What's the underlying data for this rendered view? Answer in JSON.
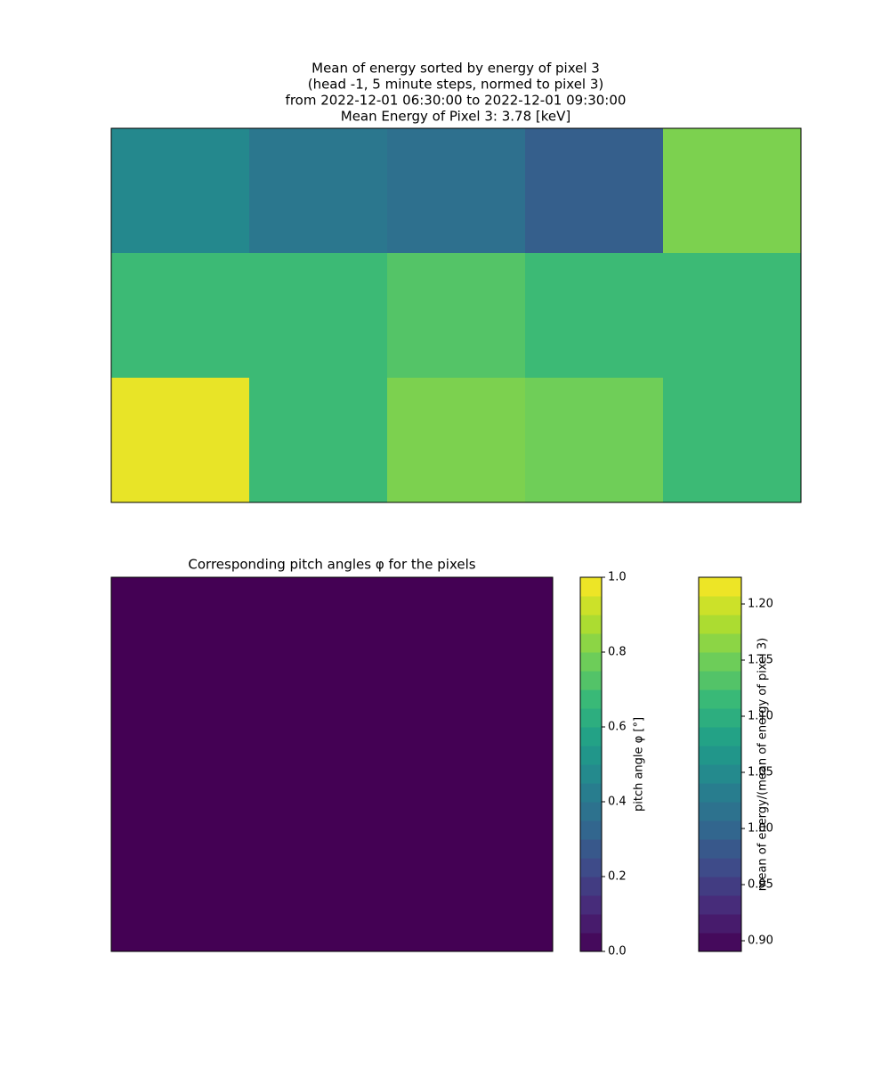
{
  "chart_data": [
    {
      "type": "heatmap",
      "title": [
        "Mean of energy sorted by energy of pixel 3",
        "(head -1, 5 minute steps, normed to pixel 3)",
        "from 2022-12-01 06:30:00 to 2022-12-01 09:30:00",
        "Mean Energy of Pixel 3: 3.78 [keV]"
      ],
      "colormap": "viridis",
      "values": [
        [
          1.047,
          1.023,
          1.013,
          0.99,
          1.157
        ],
        [
          1.117,
          1.117,
          1.133,
          1.117,
          1.117
        ],
        [
          1.213,
          1.117,
          1.157,
          1.15,
          1.117
        ]
      ],
      "colorbar": {
        "label": "mean of energy/(mean of energy of pixel 3)",
        "lim": [
          0.8905,
          1.2238
        ],
        "ticks": [
          {
            "value": 0.9,
            "label": "0.90"
          },
          {
            "value": 0.95,
            "label": "0.95"
          },
          {
            "value": 1.0,
            "label": "1.00"
          },
          {
            "value": 1.05,
            "label": "1.05"
          },
          {
            "value": 1.1,
            "label": "1.10"
          },
          {
            "value": 1.15,
            "label": "1.15"
          },
          {
            "value": 1.2,
            "label": "1.20"
          }
        ]
      }
    },
    {
      "type": "heatmap",
      "title": [
        "Corresponding pitch angles φ for the pixels"
      ],
      "colormap": "viridis",
      "values": [
        [
          0
        ]
      ],
      "colorbar": {
        "label": "pitch angle φ [°]",
        "lim": [
          0,
          1
        ],
        "ticks": [
          {
            "value": 0,
            "label": "0.0"
          },
          {
            "value": 0.2,
            "label": "0.2"
          },
          {
            "value": 0.4,
            "label": "0.4"
          },
          {
            "value": 0.6,
            "label": "0.6"
          },
          {
            "value": 0.8,
            "label": "0.8"
          },
          {
            "value": 1,
            "label": "1.0"
          }
        ]
      }
    }
  ]
}
